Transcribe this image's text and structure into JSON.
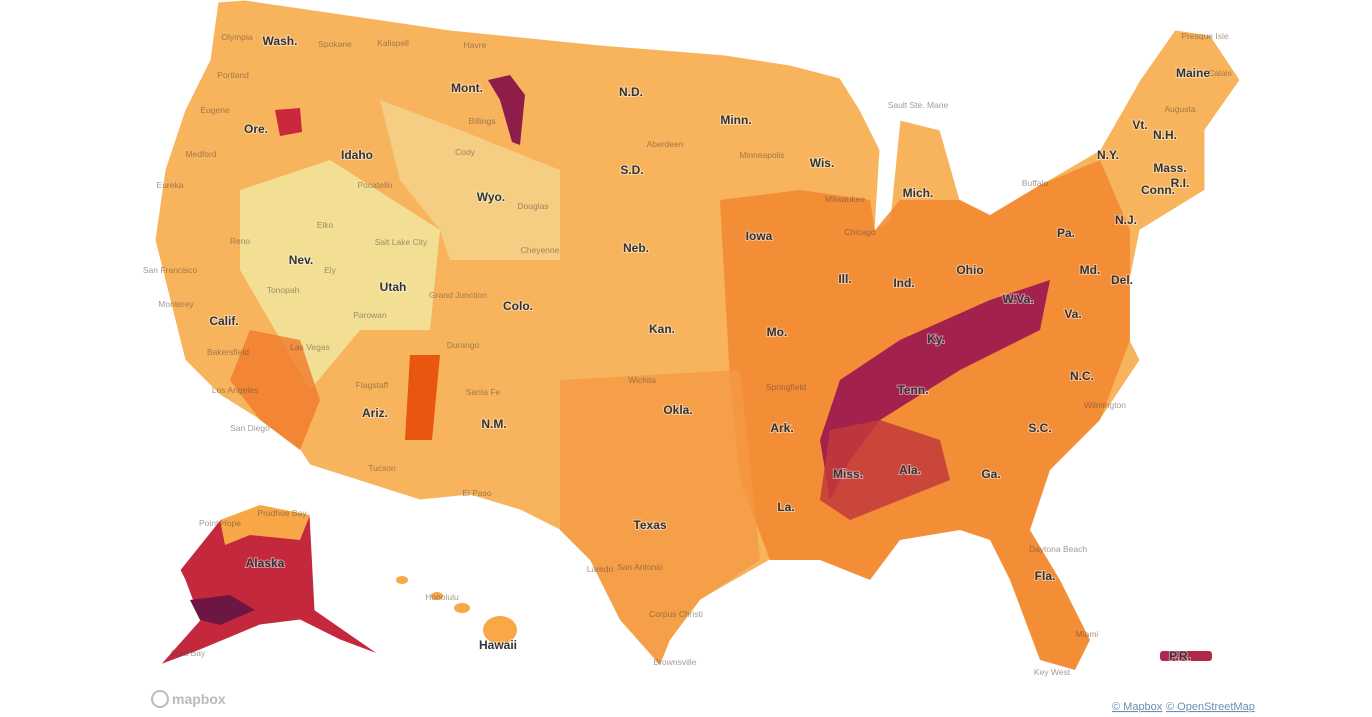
{
  "map": {
    "state_labels": [
      "Wash.",
      "Ore.",
      "Calif.",
      "Nev.",
      "Idaho",
      "Mont.",
      "Wyo.",
      "Utah",
      "Colo.",
      "Ariz.",
      "N.M.",
      "N.D.",
      "S.D.",
      "Neb.",
      "Kan.",
      "Okla.",
      "Texas",
      "Minn.",
      "Iowa",
      "Mo.",
      "Ark.",
      "La.",
      "Wis.",
      "Ill.",
      "Mich.",
      "Ind.",
      "Ohio",
      "Ky.",
      "Tenn.",
      "Miss.",
      "Ala.",
      "Ga.",
      "Fla.",
      "S.C.",
      "N.C.",
      "Va.",
      "W.Va.",
      "Pa.",
      "N.Y.",
      "Vt.",
      "N.H.",
      "Maine",
      "Mass.",
      "Conn.",
      "R.I.",
      "N.J.",
      "Del.",
      "Md.",
      "Alaska",
      "Hawaii",
      "P.R."
    ],
    "city_labels": [
      "Olympia",
      "Spokane",
      "Kalispell",
      "Havre",
      "Portland",
      "Eugene",
      "Medford",
      "Eureka",
      "Reno",
      "San Francisco",
      "Monterey",
      "Bakersfield",
      "Los Angeles",
      "San Diego",
      "Las Vegas",
      "Tonopah",
      "Elko",
      "Ely",
      "Salt Lake City",
      "Grand Junction",
      "Parowan",
      "Pocatello",
      "Cody",
      "Billings",
      "Flagstaff",
      "Tucson",
      "Santa Fe",
      "Durango",
      "Cheyenne",
      "Douglas",
      "Aberdeen",
      "Minneapolis",
      "Milwaukee",
      "Chicago",
      "Sault Ste. Marie",
      "Buffalo",
      "Presque Isle",
      "Calais",
      "Augusta",
      "Wilmington",
      "Daytona Beach",
      "Miami",
      "Key West",
      "Corpus Christi",
      "Brownsville",
      "Laredo",
      "San Antonio",
      "El Paso",
      "Wichita",
      "Springfield",
      "Point Hope",
      "Prudhoe Bay",
      "Cold Bay",
      "Honolulu"
    ],
    "logo": "mapbox",
    "attribution": [
      "© Mapbox",
      "© OpenStreetMap"
    ]
  }
}
